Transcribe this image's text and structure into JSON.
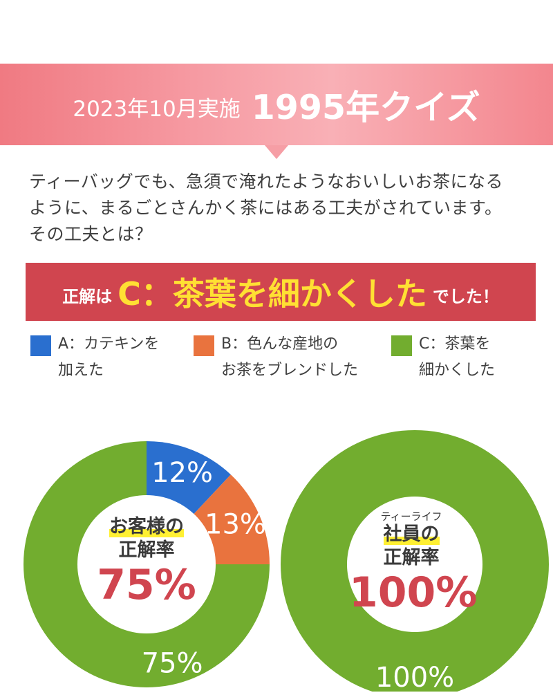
{
  "header": {
    "date_label": "2023年10月実施",
    "title": "1995年クイズ"
  },
  "question": {
    "line1": "ティーバッグでも、急須で淹れたようなおいしいお茶になる",
    "line2": "ように、まるごとさんかく茶にはある工夫がされています。",
    "line3": "その工夫とは？"
  },
  "answer": {
    "prefix": "正解は",
    "main": "C：茶葉を細かくした",
    "suffix": "でした！"
  },
  "legend": [
    {
      "line1": "A：カテキンを",
      "line2": "加えた",
      "color": "#2a6fcf"
    },
    {
      "line1": "B：色んな産地の",
      "line2": "お茶をブレンドした",
      "color": "#e9733e"
    },
    {
      "line1": "C：茶葉を",
      "line2": "細かくした",
      "color": "#72ad2f"
    }
  ],
  "chart_data": [
    {
      "type": "pie",
      "categories": [
        "A",
        "B",
        "C"
      ],
      "values": [
        12,
        13,
        75
      ],
      "colors": [
        "#2a6fcf",
        "#e9733e",
        "#72ad2f"
      ],
      "data_labels": [
        "12%",
        "13%",
        "75%"
      ],
      "center": {
        "label_line1": "お客様の",
        "label_line2": "正解率",
        "value": "75%"
      }
    },
    {
      "type": "pie",
      "categories": [
        "C"
      ],
      "values": [
        100
      ],
      "colors": [
        "#72ad2f"
      ],
      "data_labels": [
        "100%"
      ],
      "center": {
        "small": "ティーライフ",
        "label_line1": "社員の",
        "label_line2": "正解率",
        "value": "100%"
      }
    }
  ]
}
